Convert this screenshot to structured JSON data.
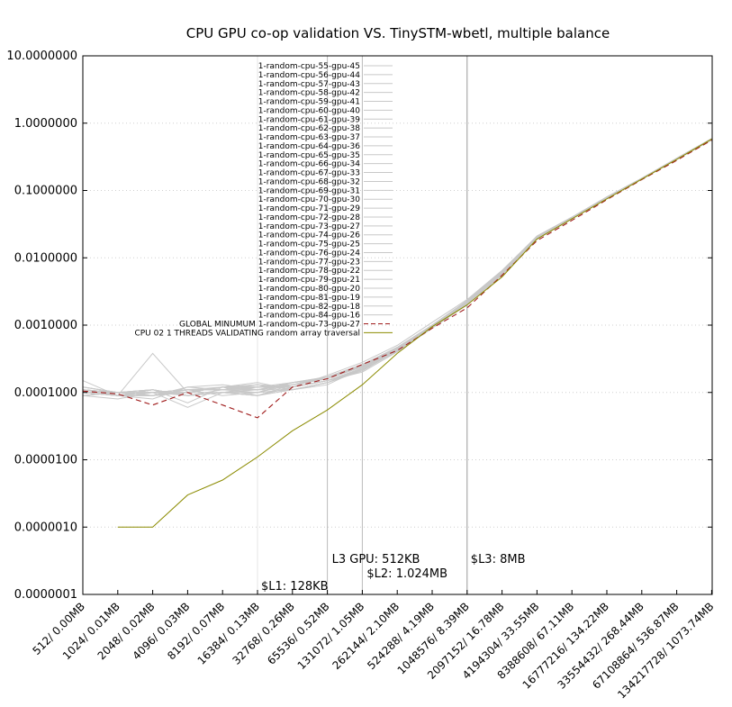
{
  "chart_data": {
    "type": "line",
    "title": "CPU GPU co-op validation VS. TinySTM-wbetl, multiple balance",
    "xlabel": "",
    "ylabel": "",
    "yscale": "log",
    "ylim": [
      1e-07,
      10
    ],
    "grid": "horizontal dotted",
    "legend_position": "top-center",
    "y_tick_labels": [
      "10.0000000",
      "1.0000000",
      "0.1000000",
      "0.0100000",
      "0.0010000",
      "0.0001000",
      "0.0000100",
      "0.0000010",
      "0.0000001"
    ],
    "categories": [
      "512/ 0.00MB",
      "1024/ 0.01MB",
      "2048/ 0.02MB",
      "4096/ 0.03MB",
      "8192/ 0.07MB",
      "16384/ 0.13MB",
      "32768/ 0.26MB",
      "65536/ 0.52MB",
      "131072/ 1.05MB",
      "262144/ 2.10MB",
      "524288/ 4.19MB",
      "1048576/ 8.39MB",
      "2097152/ 16.78MB",
      "4194304/ 33.55MB",
      "8388608/ 67.11MB",
      "16777216/ 134.22MB",
      "33554432/ 268.44MB",
      "67108864/ 536.87MB",
      "134217728/ 1073.74MB"
    ],
    "series": [
      {
        "name": "1-random-cpu-55-gpu-45",
        "color": "#c8c8c8",
        "style": "solid",
        "values": [
          0.00015,
          9e-05,
          0.00038,
          0.0001,
          0.00012,
          9e-05,
          0.00012,
          0.00018,
          0.00028,
          0.0005,
          0.0011,
          0.0024,
          0.0065,
          0.021,
          0.04,
          0.08,
          0.15,
          0.3,
          0.58
        ]
      },
      {
        "name": "1-random-cpu-56-gpu-44",
        "color": "#c8c8c8",
        "style": "solid",
        "values": [
          0.0001,
          9e-05,
          0.0001,
          6e-05,
          0.0001,
          0.00012,
          0.00013,
          0.00017,
          0.00026,
          0.00046,
          0.001,
          0.0022,
          0.006,
          0.02,
          0.039,
          0.078,
          0.15,
          0.3,
          0.58
        ]
      },
      {
        "name": "1-random-cpu-57-gpu-43",
        "color": "#c8c8c8",
        "style": "solid",
        "values": [
          0.00011,
          0.0001,
          9e-05,
          0.00011,
          9e-05,
          0.0001,
          0.00011,
          0.00014,
          0.00022,
          0.00042,
          0.00095,
          0.0021,
          0.0058,
          0.019,
          0.038,
          0.076,
          0.148,
          0.29,
          0.57
        ]
      },
      {
        "name": "1-random-cpu-58-gpu-42",
        "color": "#c8c8c8",
        "style": "solid",
        "values": [
          0.0001,
          9e-05,
          8e-05,
          0.00012,
          0.00013,
          0.00011,
          0.00014,
          0.00016,
          0.00024,
          0.00045,
          0.001,
          0.0022,
          0.0062,
          0.02,
          0.04,
          0.079,
          0.152,
          0.3,
          0.59
        ]
      },
      {
        "name": "1-random-cpu-59-gpu-41",
        "color": "#c8c8c8",
        "style": "solid",
        "values": [
          9e-05,
          8e-05,
          0.0001,
          9e-05,
          0.00011,
          0.00013,
          0.00012,
          0.00015,
          0.0002,
          0.0004,
          0.0009,
          0.002,
          0.0055,
          0.019,
          0.038,
          0.077,
          0.15,
          0.29,
          0.56
        ]
      },
      {
        "name": "1-random-cpu-60-gpu-40",
        "color": "#c8c8c8",
        "style": "solid",
        "values": [
          0.00012,
          0.0001,
          0.00011,
          7e-05,
          0.00012,
          0.00014,
          0.00011,
          0.00013,
          0.00023,
          0.00043,
          0.00098,
          0.0021,
          0.0057,
          0.02,
          0.039,
          0.078,
          0.149,
          0.3,
          0.58
        ]
      },
      {
        "name": "1-random-cpu-61-gpu-39",
        "color": "#c8c8c8",
        "style": "solid",
        "values": [
          0.0001,
          0.0001,
          9e-05,
          0.0001,
          0.0001,
          9e-05,
          0.00013,
          0.00016,
          0.00025,
          0.00044,
          0.001,
          0.0023,
          0.0063,
          0.021,
          0.04,
          0.08,
          0.151,
          0.3,
          0.59
        ]
      },
      {
        "name": "1-random-cpu-62-gpu-38",
        "color": "#c8c8c8",
        "style": "solid",
        "values": [
          0.00011,
          9e-05,
          0.0001,
          0.00011,
          0.00012,
          0.00012,
          0.00012,
          0.00015,
          0.00022,
          0.00041,
          0.00094,
          0.002,
          0.0056,
          0.019,
          0.038,
          0.076,
          0.147,
          0.29,
          0.57
        ]
      },
      {
        "name": "1-random-cpu-63-gpu-37",
        "color": "#c8c8c8",
        "style": "solid",
        "values": [
          9e-05,
          0.0001,
          0.00011,
          9e-05,
          0.0001,
          0.00011,
          0.00013,
          0.00017,
          0.00024,
          0.00044,
          0.00099,
          0.0022,
          0.006,
          0.02,
          0.039,
          0.078,
          0.15,
          0.3,
          0.58
        ]
      },
      {
        "name": "1-random-cpu-64-gpu-36",
        "color": "#c8c8c8",
        "style": "solid",
        "values": [
          0.0001,
          9e-05,
          9e-05,
          0.00012,
          0.00011,
          0.0001,
          0.00011,
          0.00014,
          0.00021,
          0.00042,
          0.00096,
          0.0021,
          0.0059,
          0.02,
          0.039,
          0.077,
          0.149,
          0.29,
          0.57
        ]
      },
      {
        "name": "1-random-cpu-65-gpu-35",
        "color": "#c8c8c8",
        "style": "solid",
        "values": [
          0.00011,
          0.0001,
          0.0001,
          0.0001,
          0.00012,
          0.00012,
          0.00014,
          0.00016,
          0.00026,
          0.00047,
          0.001,
          0.0023,
          0.0064,
          0.021,
          0.04,
          0.079,
          0.152,
          0.3,
          0.59
        ]
      },
      {
        "name": "1-random-cpu-66-gpu-34",
        "color": "#c8c8c8",
        "style": "solid",
        "values": [
          0.0001,
          9e-05,
          0.00011,
          9e-05,
          0.0001,
          9e-05,
          0.00012,
          0.00015,
          0.00023,
          0.00043,
          0.00097,
          0.0021,
          0.0058,
          0.019,
          0.038,
          0.077,
          0.148,
          0.29,
          0.57
        ]
      },
      {
        "name": "1-random-cpu-67-gpu-33",
        "color": "#c8c8c8",
        "style": "solid",
        "values": [
          9e-05,
          0.0001,
          9e-05,
          0.00011,
          0.00011,
          0.00011,
          0.00013,
          0.00017,
          0.00025,
          0.00045,
          0.001,
          0.0022,
          0.0061,
          0.02,
          0.039,
          0.078,
          0.15,
          0.3,
          0.58
        ]
      },
      {
        "name": "1-random-cpu-68-gpu-32",
        "color": "#c8c8c8",
        "style": "solid",
        "values": [
          0.00012,
          0.0001,
          0.0001,
          0.0001,
          0.00012,
          0.00013,
          0.00011,
          0.00014,
          0.00022,
          0.00041,
          0.00095,
          0.002,
          0.0057,
          0.019,
          0.038,
          0.076,
          0.148,
          0.29,
          0.57
        ]
      },
      {
        "name": "1-random-cpu-69-gpu-31",
        "color": "#c8c8c8",
        "style": "solid",
        "values": [
          0.0001,
          9e-05,
          0.00011,
          9e-05,
          0.0001,
          0.0001,
          0.00013,
          0.00016,
          0.00024,
          0.00044,
          0.00099,
          0.0022,
          0.0062,
          0.02,
          0.04,
          0.079,
          0.151,
          0.3,
          0.58
        ]
      },
      {
        "name": "1-random-cpu-70-gpu-30",
        "color": "#c8c8c8",
        "style": "solid",
        "values": [
          0.00011,
          0.0001,
          9e-05,
          0.00011,
          0.00011,
          0.00012,
          0.00012,
          0.00015,
          0.00023,
          0.00043,
          0.00097,
          0.0021,
          0.0059,
          0.02,
          0.039,
          0.078,
          0.149,
          0.29,
          0.57
        ]
      },
      {
        "name": "1-random-cpu-71-gpu-29",
        "color": "#c8c8c8",
        "style": "solid",
        "values": [
          0.0001,
          9e-05,
          0.0001,
          0.0001,
          0.00012,
          0.00011,
          0.00014,
          0.00017,
          0.00026,
          0.00046,
          0.001,
          0.0023,
          0.0063,
          0.021,
          0.04,
          0.08,
          0.152,
          0.3,
          0.59
        ]
      },
      {
        "name": "1-random-cpu-72-gpu-28",
        "color": "#c8c8c8",
        "style": "solid",
        "values": [
          9e-05,
          0.0001,
          0.00011,
          9e-05,
          0.0001,
          9e-05,
          0.00011,
          0.00014,
          0.00021,
          0.00042,
          0.00095,
          0.0021,
          0.0058,
          0.019,
          0.038,
          0.077,
          0.148,
          0.29,
          0.57
        ]
      },
      {
        "name": "1-random-cpu-73-gpu-27",
        "color": "#c8c8c8",
        "style": "solid",
        "values": [
          0.0001,
          9e-05,
          0.0001,
          0.00011,
          0.00011,
          0.00012,
          0.00013,
          0.00016,
          0.00025,
          0.00045,
          0.001,
          0.0022,
          0.0061,
          0.02,
          0.039,
          0.078,
          0.15,
          0.3,
          0.58
        ]
      },
      {
        "name": "1-random-cpu-74-gpu-26",
        "color": "#c8c8c8",
        "style": "solid",
        "values": [
          0.00011,
          0.0001,
          9e-05,
          0.0001,
          0.00012,
          0.00013,
          0.00012,
          0.00015,
          0.00022,
          0.00041,
          0.00094,
          0.002,
          0.0056,
          0.019,
          0.038,
          0.076,
          0.147,
          0.29,
          0.57
        ]
      },
      {
        "name": "1-random-cpu-75-gpu-25",
        "color": "#c8c8c8",
        "style": "solid",
        "values": [
          0.0001,
          9e-05,
          0.00011,
          9e-05,
          0.0001,
          0.0001,
          0.00014,
          0.00017,
          0.00024,
          0.00044,
          0.00099,
          0.0022,
          0.006,
          0.02,
          0.039,
          0.079,
          0.151,
          0.3,
          0.58
        ]
      },
      {
        "name": "1-random-cpu-76-gpu-24",
        "color": "#c8c8c8",
        "style": "solid",
        "values": [
          0.00012,
          0.0001,
          0.0001,
          0.00011,
          0.00011,
          0.00011,
          0.00011,
          0.00014,
          0.00023,
          0.00043,
          0.00097,
          0.0021,
          0.0059,
          0.02,
          0.039,
          0.077,
          0.149,
          0.29,
          0.57
        ]
      },
      {
        "name": "1-random-cpu-77-gpu-23",
        "color": "#c8c8c8",
        "style": "solid",
        "values": [
          0.0001,
          9e-05,
          9e-05,
          0.0001,
          0.00012,
          0.00012,
          0.00013,
          0.00016,
          0.00026,
          0.00046,
          0.001,
          0.0023,
          0.0063,
          0.021,
          0.04,
          0.08,
          0.152,
          0.3,
          0.59
        ]
      },
      {
        "name": "1-random-cpu-78-gpu-22",
        "color": "#c8c8c8",
        "style": "solid",
        "values": [
          9e-05,
          0.0001,
          0.00011,
          9e-05,
          0.0001,
          9e-05,
          0.00012,
          0.00015,
          0.00021,
          0.00042,
          0.00096,
          0.0021,
          0.0058,
          0.019,
          0.038,
          0.077,
          0.148,
          0.29,
          0.57
        ]
      },
      {
        "name": "1-random-cpu-79-gpu-21",
        "color": "#c8c8c8",
        "style": "solid",
        "values": [
          0.0001,
          9e-05,
          0.0001,
          0.00011,
          0.00011,
          0.00011,
          0.00013,
          0.00017,
          0.00025,
          0.00045,
          0.001,
          0.0022,
          0.0061,
          0.02,
          0.039,
          0.078,
          0.15,
          0.3,
          0.58
        ]
      },
      {
        "name": "1-random-cpu-80-gpu-20",
        "color": "#c8c8c8",
        "style": "solid",
        "values": [
          0.00011,
          0.0001,
          9e-05,
          0.0001,
          0.00012,
          0.00013,
          0.00011,
          0.00014,
          0.00022,
          0.00041,
          0.00094,
          0.002,
          0.0057,
          0.019,
          0.038,
          0.076,
          0.147,
          0.29,
          0.57
        ]
      },
      {
        "name": "1-random-cpu-81-gpu-19",
        "color": "#c8c8c8",
        "style": "solid",
        "values": [
          0.0001,
          9e-05,
          0.00011,
          9e-05,
          0.0001,
          0.0001,
          0.00014,
          0.00016,
          0.00024,
          0.00044,
          0.00099,
          0.0022,
          0.0062,
          0.02,
          0.04,
          0.079,
          0.151,
          0.3,
          0.58
        ]
      },
      {
        "name": "1-random-cpu-82-gpu-18",
        "color": "#c8c8c8",
        "style": "solid",
        "values": [
          0.00012,
          0.0001,
          0.0001,
          0.00011,
          0.00011,
          0.00012,
          0.00012,
          0.00015,
          0.00023,
          0.00043,
          0.00097,
          0.0021,
          0.0059,
          0.02,
          0.039,
          0.078,
          0.149,
          0.29,
          0.57
        ]
      },
      {
        "name": "1-random-cpu-84-gpu-16",
        "color": "#c8c8c8",
        "style": "solid",
        "values": [
          0.0001,
          9e-05,
          9e-05,
          0.0001,
          0.00012,
          0.00011,
          0.00013,
          0.00017,
          0.00026,
          0.00046,
          0.001,
          0.0023,
          0.0063,
          0.021,
          0.04,
          0.08,
          0.152,
          0.3,
          0.59
        ]
      },
      {
        "name": "GLOBAL MINUMUM 1-random-cpu-73-gpu-27",
        "color": "#a01c1c",
        "style": "dashed",
        "values": [
          0.000105,
          9.5e-05,
          6.5e-05,
          0.0001,
          6.5e-05,
          4.2e-05,
          0.00012,
          0.00016,
          0.00026,
          0.00042,
          0.0009,
          0.0018,
          0.0055,
          0.018,
          0.036,
          0.073,
          0.145,
          0.28,
          0.56
        ]
      },
      {
        "name": "CPU 02 1 THREADS VALIDATING random array traversal",
        "color": "#8b8b00",
        "style": "solid",
        "values": [
          null,
          1e-06,
          1e-06,
          3e-06,
          5e-06,
          1.1e-05,
          2.7e-05,
          5.5e-05,
          0.00013,
          0.00038,
          0.00095,
          0.002,
          0.0052,
          0.019,
          0.038,
          0.075,
          0.148,
          0.29,
          0.58
        ]
      }
    ],
    "vertical_lines": [
      {
        "label": "$L1: 128KB",
        "x_category": "16384/ 0.13MB",
        "color": "#e6e6e6"
      },
      {
        "label": "L3 GPU: 512KB",
        "x_category": "65536/ 0.52MB",
        "color": "#bbbbbb"
      },
      {
        "label": "$L2: 1.024MB",
        "x_category": "131072/ 1.05MB",
        "color": "#bbbbbb"
      },
      {
        "label": "$L3: 8MB",
        "x_category": "1048576/ 8.39MB",
        "color": "#999999"
      }
    ]
  }
}
